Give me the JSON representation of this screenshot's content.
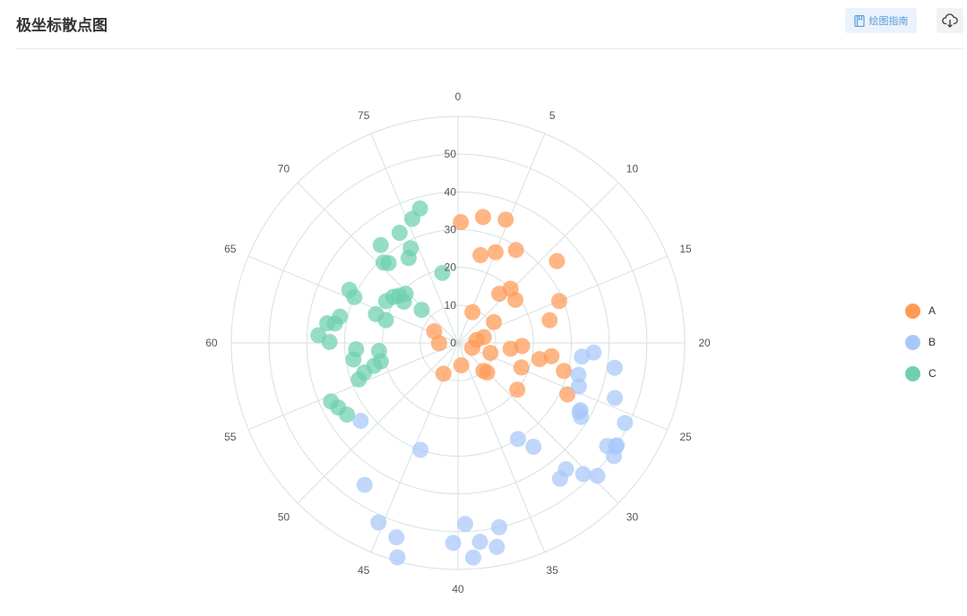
{
  "header": {
    "title": "极坐标散点图",
    "guide_label": "绘图指南",
    "guide_icon": "book-icon",
    "download_icon": "cloud-download-icon"
  },
  "chart_data": {
    "type": "scatter",
    "coordinate": "polar",
    "angle_axis": {
      "min": 0,
      "max": 80,
      "direction": "clockwise",
      "zero_at": "top",
      "ticks": [
        0,
        5,
        10,
        15,
        20,
        25,
        30,
        35,
        40,
        45,
        50,
        55,
        60,
        65,
        70,
        75
      ]
    },
    "radius_axis": {
      "min": 0,
      "max": 60,
      "ticks": [
        0,
        10,
        20,
        30,
        40,
        50
      ]
    },
    "grid": true,
    "legend_position": "right",
    "series": [
      {
        "name": "A",
        "color": "#ff9a54",
        "points": [
          [
            0.3,
            32
          ],
          [
            2.5,
            34
          ],
          [
            3.2,
            24
          ],
          [
            4.7,
            35
          ],
          [
            5.0,
            26
          ],
          [
            5.6,
            9
          ],
          [
            7.1,
            29
          ],
          [
            8.9,
            17
          ],
          [
            9.8,
            20
          ],
          [
            11.2,
            34
          ],
          [
            11.8,
            19
          ],
          [
            13.3,
            11
          ],
          [
            15.0,
            29
          ],
          [
            16.9,
            25
          ],
          [
            17.2,
            7
          ],
          [
            18.0,
            5
          ],
          [
            20.6,
            17
          ],
          [
            21.4,
            14
          ],
          [
            21.8,
            25
          ],
          [
            22.5,
            22
          ],
          [
            23.3,
            29
          ],
          [
            23.8,
            9
          ],
          [
            24.1,
            4
          ],
          [
            24.7,
            18
          ],
          [
            25.6,
            32
          ],
          [
            28.5,
            20
          ],
          [
            30.1,
            11
          ],
          [
            30.6,
            10
          ],
          [
            38.1,
            6
          ],
          [
            45.6,
            9
          ],
          [
            59.7,
            5
          ],
          [
            65.8,
            7
          ]
        ]
      },
      {
        "name": "B",
        "color": "#a8c8fa",
        "points": [
          [
            20.9,
            36
          ],
          [
            21.4,
            33
          ],
          [
            22.0,
            42
          ],
          [
            23.3,
            33
          ],
          [
            24.3,
            44
          ],
          [
            24.4,
            34
          ],
          [
            25.7,
            49
          ],
          [
            26.4,
            37
          ],
          [
            26.6,
            37
          ],
          [
            26.9,
            38
          ],
          [
            27.3,
            50
          ],
          [
            27.4,
            50
          ],
          [
            27.7,
            48
          ],
          [
            28.0,
            51
          ],
          [
            29.7,
            51
          ],
          [
            30.3,
            48
          ],
          [
            31.0,
            44
          ],
          [
            31.8,
            45
          ],
          [
            32.0,
            34
          ],
          [
            32.9,
            30
          ],
          [
            37.2,
            50
          ],
          [
            37.6,
            55
          ],
          [
            38.6,
            53
          ],
          [
            39.1,
            57
          ],
          [
            39.5,
            48
          ],
          [
            40.3,
            53
          ],
          [
            43.5,
            59
          ],
          [
            43.9,
            54
          ],
          [
            44.3,
            30
          ],
          [
            45.3,
            52
          ],
          [
            47.4,
            45
          ],
          [
            51.4,
            33
          ]
        ]
      },
      {
        "name": "C",
        "color": "#6ed0b0",
        "points": [
          [
            52.7,
            35
          ],
          [
            53.7,
            36
          ],
          [
            54.5,
            37
          ],
          [
            55.5,
            28
          ],
          [
            56.1,
            26
          ],
          [
            56.6,
            23
          ],
          [
            57.0,
            21
          ],
          [
            58.0,
            28
          ],
          [
            58.7,
            21
          ],
          [
            59.2,
            27
          ],
          [
            60.1,
            34
          ],
          [
            60.7,
            37
          ],
          [
            61.9,
            35
          ],
          [
            62.0,
            33
          ],
          [
            62.8,
            32
          ],
          [
            63.9,
            20
          ],
          [
            64.3,
            23
          ],
          [
            65.3,
            30
          ],
          [
            65.8,
            32
          ],
          [
            66.7,
            22
          ],
          [
            67.9,
            21
          ],
          [
            68.3,
            18
          ],
          [
            68.6,
            20
          ],
          [
            69.4,
            13
          ],
          [
            69.6,
            19
          ],
          [
            70.5,
            29
          ],
          [
            70.9,
            28
          ],
          [
            71.5,
            33
          ],
          [
            73.3,
            26
          ],
          [
            73.8,
            33
          ],
          [
            74.1,
            28
          ],
          [
            75.5,
            35
          ],
          [
            76.5,
            37
          ],
          [
            77.2,
            19
          ]
        ]
      }
    ]
  }
}
